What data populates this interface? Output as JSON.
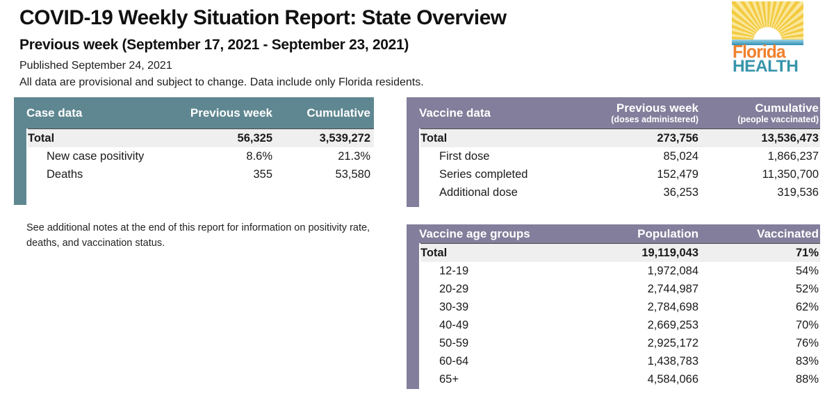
{
  "header": {
    "title": "COVID-19 Weekly Situation Report: State Overview",
    "period": "Previous week (September 17, 2021 - September 23, 2021)",
    "published": "Published September 24, 2021",
    "disclaimer": "All data are provisional and subject to change. Data include only Florida residents."
  },
  "logo": {
    "line1": "Florida",
    "line2": "HEALTH"
  },
  "colors": {
    "case_header_teal": "#5f8791",
    "vaccine_header_purple": "#827e9b",
    "total_row_bg": "#f0eff0",
    "logo_orange": "#f0812d",
    "logo_teal": "#3795aa",
    "logo_ray_gold": "#f3ca41"
  },
  "notes": {
    "text": "See additional notes at the end of this report for information on positivity rate, deaths, and vaccination status."
  },
  "tables": {
    "case": {
      "title": "Case data",
      "columns": {
        "col2": "Previous week",
        "col3": "Cumulative"
      },
      "rows": [
        {
          "label": "Total",
          "prev": "56,325",
          "cum": "3,539,272"
        },
        {
          "label": "New case positivity",
          "prev": "8.6%",
          "cum": "21.3%"
        },
        {
          "label": "Deaths",
          "prev": "355",
          "cum": "53,580"
        }
      ]
    },
    "vaccine": {
      "title": "Vaccine data",
      "columns": {
        "col2": "Previous week",
        "col2_sub": "(doses administered)",
        "col3": "Cumulative",
        "col3_sub": "(people vaccinated)"
      },
      "rows": [
        {
          "label": "Total",
          "prev": "273,756",
          "cum": "13,536,473"
        },
        {
          "label": "First dose",
          "prev": "85,024",
          "cum": "1,866,237"
        },
        {
          "label": "Series completed",
          "prev": "152,479",
          "cum": "11,350,700"
        },
        {
          "label": "Additional dose",
          "prev": "36,253",
          "cum": "319,536"
        }
      ]
    },
    "age": {
      "title": "Vaccine age groups",
      "columns": {
        "col2": "Population",
        "col3": "Vaccinated"
      },
      "rows": [
        {
          "label": "Total",
          "population": "19,119,043",
          "vaccinated": "71%"
        },
        {
          "label": "12-19",
          "population": "1,972,084",
          "vaccinated": "54%"
        },
        {
          "label": "20-29",
          "population": "2,744,987",
          "vaccinated": "52%"
        },
        {
          "label": "30-39",
          "population": "2,784,698",
          "vaccinated": "62%"
        },
        {
          "label": "40-49",
          "population": "2,669,253",
          "vaccinated": "70%"
        },
        {
          "label": "50-59",
          "population": "2,925,172",
          "vaccinated": "76%"
        },
        {
          "label": "60-64",
          "population": "1,438,783",
          "vaccinated": "83%"
        },
        {
          "label": "65+",
          "population": "4,584,066",
          "vaccinated": "88%"
        }
      ]
    }
  }
}
